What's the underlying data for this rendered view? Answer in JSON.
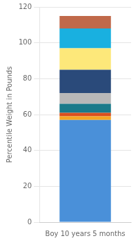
{
  "chart_data": {
    "type": "bar",
    "stacked": true,
    "categories": [
      "Boy 10 years 5 months"
    ],
    "series": [
      {
        "color": "#4a90d9",
        "values": [
          57
        ]
      },
      {
        "color": "#f5a623",
        "values": [
          2
        ]
      },
      {
        "color": "#d94f1e",
        "values": [
          2
        ]
      },
      {
        "color": "#1a7a8a",
        "values": [
          5
        ]
      },
      {
        "color": "#b8b8b8",
        "values": [
          6
        ]
      },
      {
        "color": "#2a4a7a",
        "values": [
          13
        ]
      },
      {
        "color": "#fde87a",
        "values": [
          12
        ]
      },
      {
        "color": "#19b0e0",
        "values": [
          11
        ]
      },
      {
        "color": "#c0694a",
        "values": [
          7
        ]
      }
    ],
    "y_label": "Percentile Weight in Pounds",
    "ylim": [
      0,
      120
    ],
    "yticks": [
      0,
      20,
      40,
      60,
      80,
      100,
      120
    ],
    "grid": true
  }
}
